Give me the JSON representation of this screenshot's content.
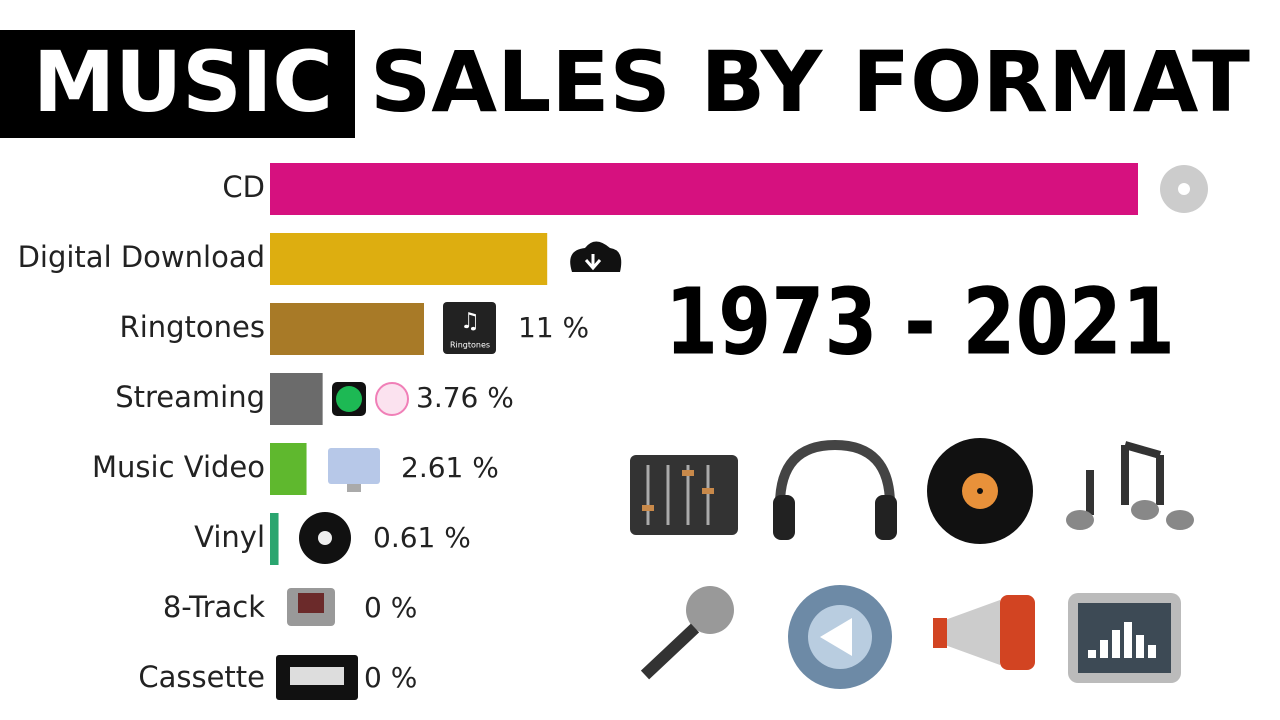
{
  "chart_data": {
    "type": "hbar",
    "title_highlight": "MUSIC",
    "title": "SALES BY FORMAT",
    "annotation": "1973 - 2021",
    "icon_text": "Ringtones",
    "categories": [
      "CD",
      "Digital Download",
      "Ringtones",
      "Streaming",
      "Music Video",
      "Vinyl",
      "8-Track",
      "Cassette"
    ],
    "values": [
      62,
      19.8,
      11,
      3.76,
      2.61,
      0.61,
      0,
      0
    ],
    "value_labels": [
      null,
      null,
      "11 %",
      "3.76 %",
      "2.61 %",
      "0.61 %",
      "0 %",
      "0 %"
    ],
    "colors": [
      "#d6117f",
      "#ddae10",
      "#a87a27",
      "#6b6b6b",
      "#5fb82e",
      "#2aa56f",
      "#888888",
      "#888888"
    ]
  }
}
